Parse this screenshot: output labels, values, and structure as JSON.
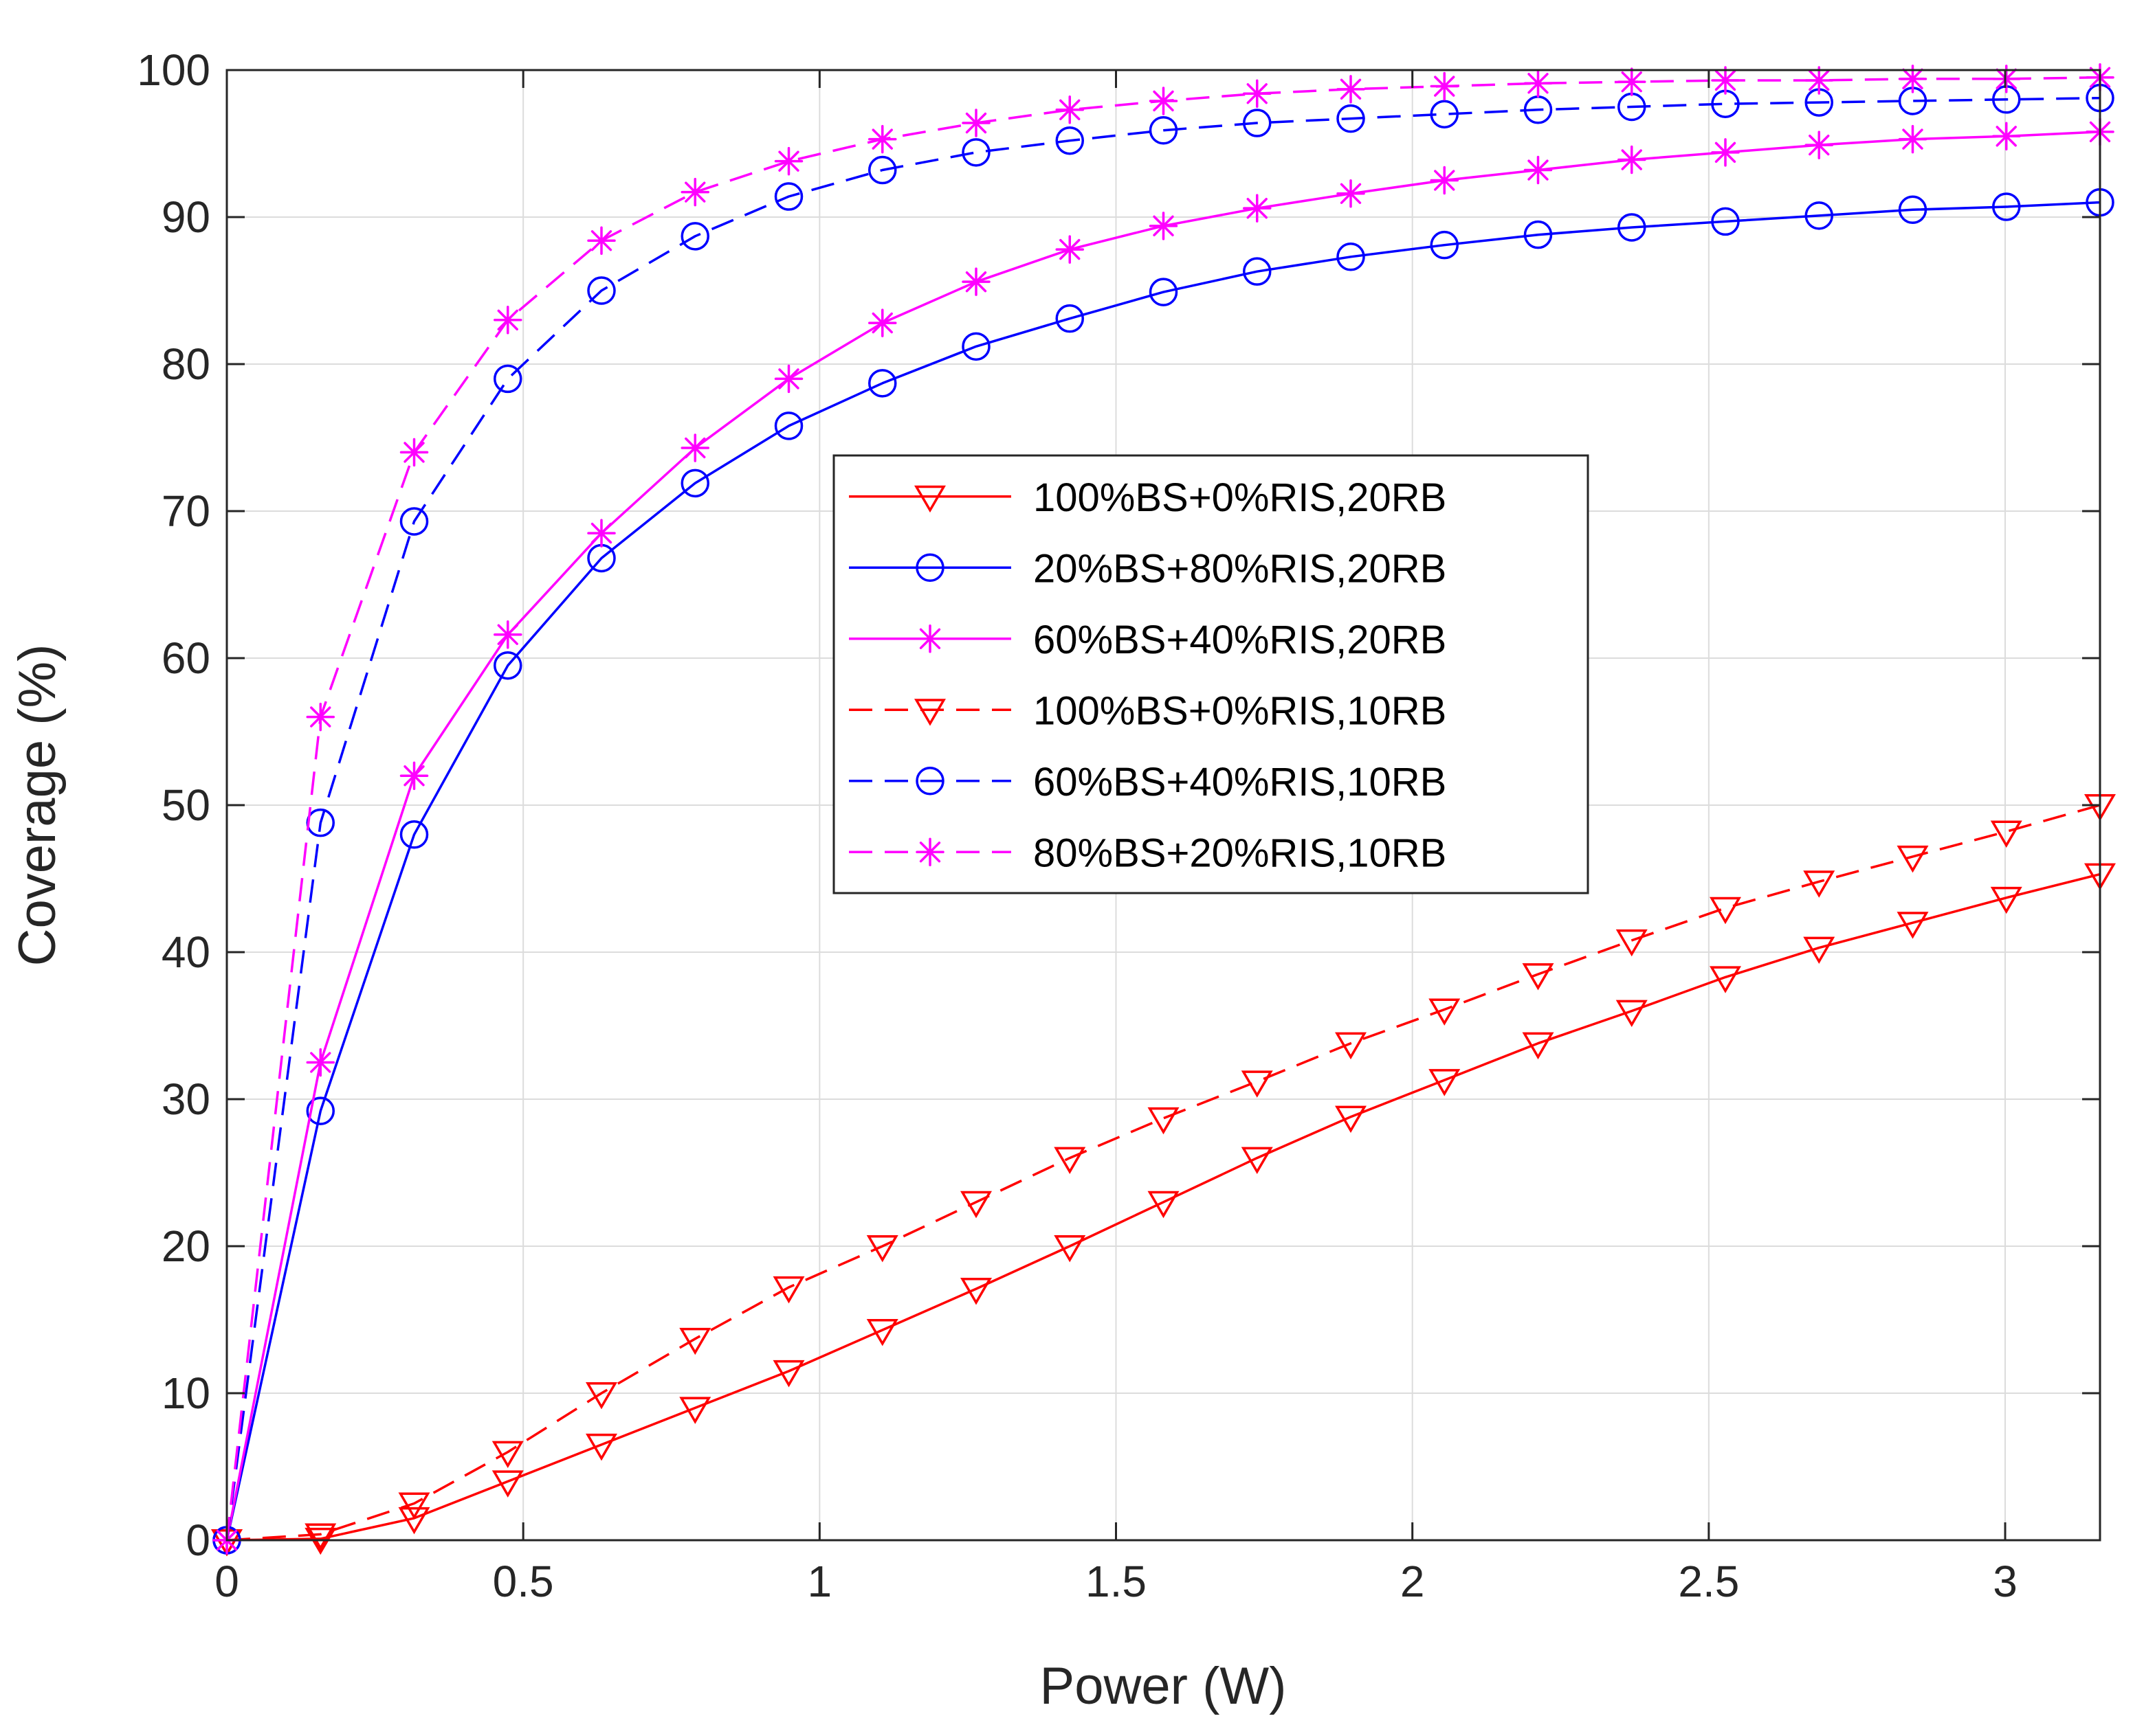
{
  "chart_data": {
    "type": "line",
    "title": "",
    "xlabel": "Power (W)",
    "ylabel": "Coverage (%)",
    "xlim": [
      0,
      3.16
    ],
    "ylim": [
      0,
      100
    ],
    "xticks": [
      0,
      0.5,
      1,
      1.5,
      2,
      2.5,
      3
    ],
    "xtick_labels": [
      "0",
      "0.5",
      "1",
      "1.5",
      "2",
      "2.5",
      "3"
    ],
    "yticks": [
      0,
      10,
      20,
      30,
      40,
      50,
      60,
      70,
      80,
      90,
      100
    ],
    "ytick_labels": [
      "0",
      "10",
      "20",
      "30",
      "40",
      "50",
      "60",
      "70",
      "80",
      "90",
      "100"
    ],
    "grid": true,
    "legend_position": "center",
    "x": [
      0,
      0.158,
      0.316,
      0.474,
      0.632,
      0.79,
      0.948,
      1.106,
      1.264,
      1.422,
      1.58,
      1.738,
      1.896,
      2.054,
      2.212,
      2.37,
      2.528,
      2.686,
      2.844,
      3.002,
      3.16
    ],
    "series": [
      {
        "name": "100%BS+0%RIS,20RB",
        "color": "#ff0000",
        "dash": "solid",
        "marker": "triangle-down",
        "values": [
          0,
          0.1,
          1.5,
          4.0,
          6.5,
          9.0,
          11.5,
          14.3,
          17.1,
          20.0,
          23.0,
          26.0,
          28.8,
          31.3,
          33.8,
          36.0,
          38.3,
          40.3,
          42.0,
          43.7,
          45.3
        ]
      },
      {
        "name": "20%BS+80%RIS,20RB",
        "color": "#0000ff",
        "dash": "solid",
        "marker": "circle",
        "values": [
          0,
          29.2,
          48.0,
          59.5,
          66.8,
          71.9,
          75.8,
          78.7,
          81.2,
          83.1,
          84.9,
          86.3,
          87.3,
          88.1,
          88.8,
          89.3,
          89.7,
          90.1,
          90.5,
          90.7,
          91.0
        ]
      },
      {
        "name": "60%BS+40%RIS,20RB",
        "color": "#ff00ff",
        "dash": "solid",
        "marker": "asterisk",
        "values": [
          0,
          32.5,
          52.0,
          61.6,
          68.5,
          74.3,
          79.0,
          82.8,
          85.6,
          87.8,
          89.4,
          90.6,
          91.6,
          92.5,
          93.2,
          93.9,
          94.4,
          94.9,
          95.3,
          95.5,
          95.8
        ]
      },
      {
        "name": "100%BS+0%RIS,10RB",
        "color": "#ff0000",
        "dash": "dashed",
        "marker": "triangle-down",
        "values": [
          0,
          0.4,
          2.5,
          6.0,
          10.0,
          13.7,
          17.2,
          20.0,
          23.0,
          26.0,
          28.7,
          31.2,
          33.8,
          36.1,
          38.5,
          40.8,
          43.0,
          44.8,
          46.5,
          48.2,
          50.0
        ]
      },
      {
        "name": "60%BS+40%RIS,10RB",
        "color": "#0000ff",
        "dash": "dashed",
        "marker": "circle",
        "values": [
          0,
          48.8,
          69.3,
          79.0,
          85.0,
          88.7,
          91.4,
          93.2,
          94.4,
          95.2,
          95.9,
          96.4,
          96.7,
          97.0,
          97.3,
          97.5,
          97.7,
          97.8,
          97.9,
          98.0,
          98.1
        ]
      },
      {
        "name": "80%BS+20%RIS,10RB",
        "color": "#ff00ff",
        "dash": "dashed",
        "marker": "asterisk",
        "values": [
          0,
          56.0,
          74.0,
          83.0,
          88.4,
          91.7,
          93.8,
          95.3,
          96.4,
          97.3,
          97.9,
          98.4,
          98.7,
          98.9,
          99.1,
          99.2,
          99.3,
          99.3,
          99.4,
          99.4,
          99.5
        ]
      }
    ]
  }
}
